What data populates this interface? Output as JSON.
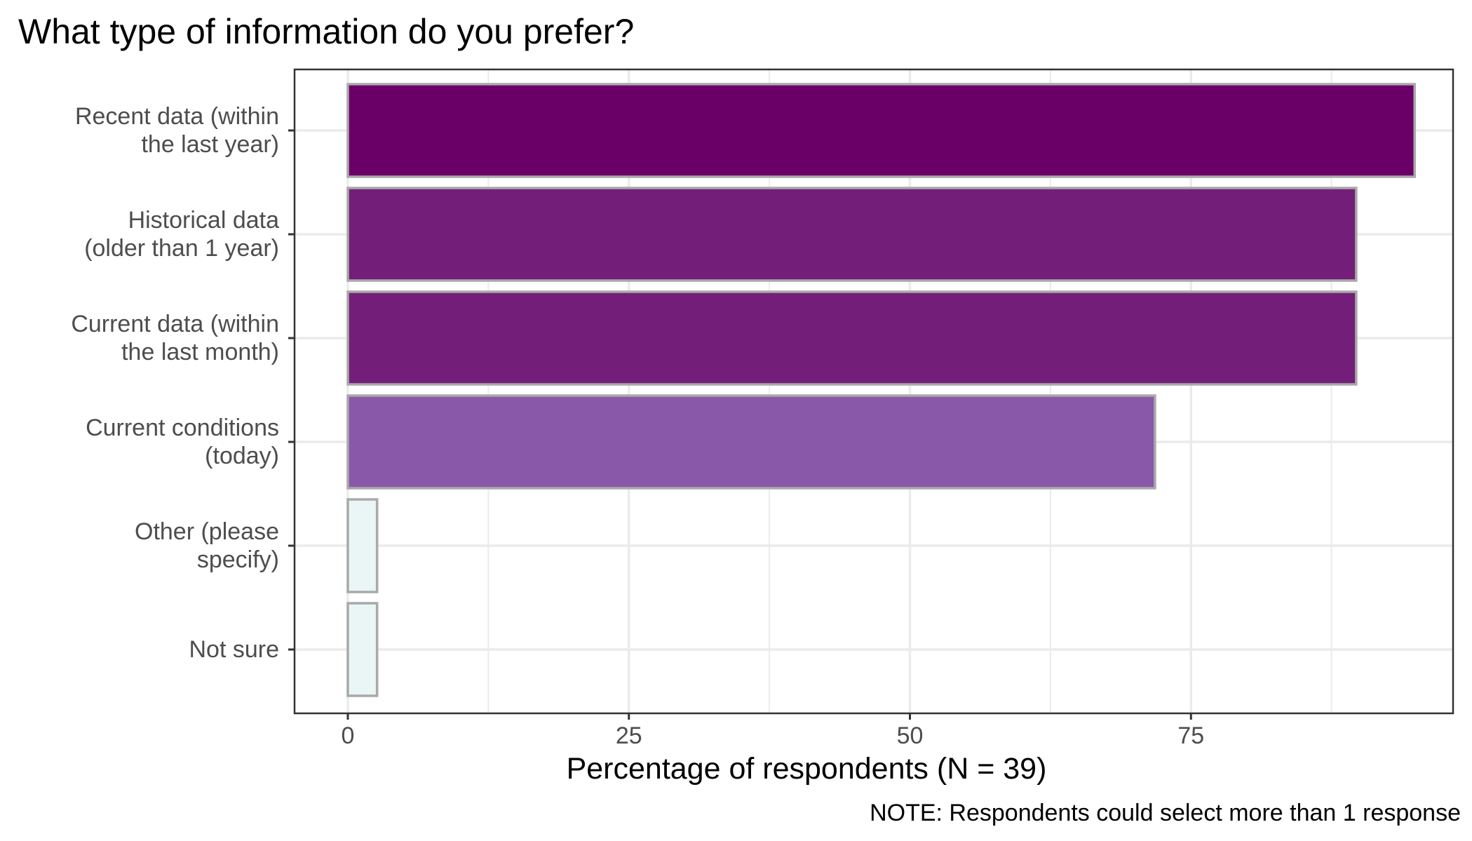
{
  "chart_data": {
    "type": "bar",
    "orientation": "horizontal",
    "title": "What type of information do you prefer?",
    "xlabel": "Percentage of respondents (N = 39)",
    "ylabel": "",
    "note": "NOTE: Respondents could select more than 1 response",
    "xlim": [
      0,
      100
    ],
    "x_ticks": [
      0,
      25,
      50,
      75
    ],
    "grid": true,
    "categories": [
      [
        "Recent data (within",
        "the last year)"
      ],
      [
        "Historical data",
        "(older than 1 year)"
      ],
      [
        "Current data (within",
        "the last month)"
      ],
      [
        "Current conditions",
        "(today)"
      ],
      [
        "Other (please",
        "specify)"
      ],
      [
        "Not sure"
      ]
    ],
    "values": [
      94.9,
      89.7,
      89.7,
      71.8,
      2.6,
      2.6
    ],
    "colors": [
      "#6a0067",
      "#731f79",
      "#731f79",
      "#8a58a8",
      "#eaf5f6",
      "#eaf5f6"
    ],
    "bar_outline_color": "#a9a9a9",
    "gridline_color": "#ebebeb",
    "panel_border_color": "#333333"
  }
}
